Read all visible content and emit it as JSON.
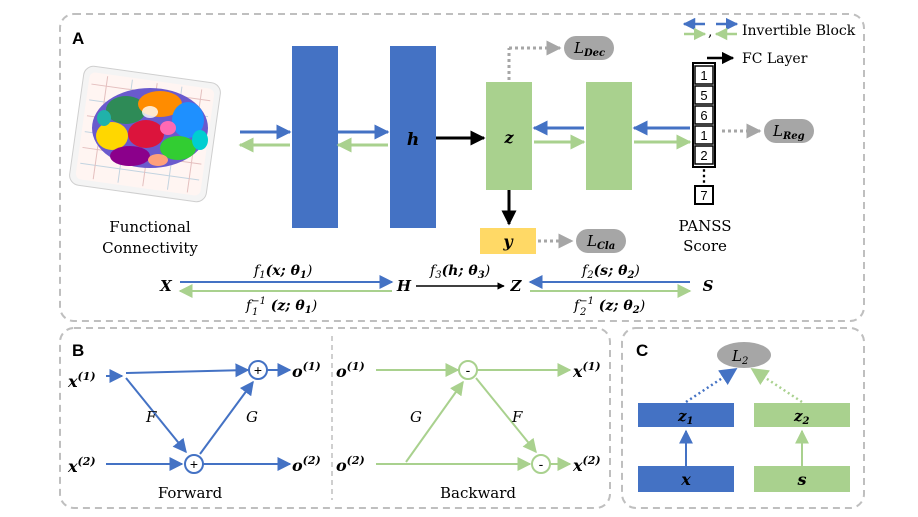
{
  "panels": {
    "a": "A",
    "b": "B",
    "c": "C"
  },
  "legend": {
    "comma": ",",
    "invertible": "Invertible Block",
    "fc": "FC Layer"
  },
  "panel_a": {
    "fc_label_1": "Functional",
    "fc_label_2": "Connectivity",
    "h": "h",
    "z": "z",
    "y": "y",
    "l_dec": "L",
    "l_dec_sub": "Dec",
    "l_cla": "L",
    "l_cla_sub": "Cla",
    "l_reg": "L",
    "l_reg_sub": "Reg",
    "panss_1": "PANSS",
    "panss_2": "Score",
    "scores": [
      "1",
      "5",
      "6",
      "1",
      "2",
      "7"
    ],
    "dots": "⋮",
    "eq": {
      "X": "X",
      "H": "H",
      "Z": "Z",
      "S": "S",
      "f1": "f",
      "f1_sub": "1",
      "f1_args": "(x; θ",
      "f1_args_sub": "1",
      "f1_close": ")",
      "f1_inv": "f",
      "f1_inv_sub": "1",
      "f1_inv_sup": "−1",
      "f1_inv_args": " (z; θ",
      "f1_inv_args_sub": "1",
      "f1_inv_close": ")",
      "f3": "f",
      "f3_sub": "3",
      "f3_args": "(h; θ",
      "f3_args_sub": "3",
      "f3_close": ")",
      "f2": "f",
      "f2_sub": "2",
      "f2_args": "(s; θ",
      "f2_args_sub": "2",
      "f2_close": ")",
      "f2_inv": "f",
      "f2_inv_sub": "2",
      "f2_inv_sup": "−1",
      "f2_inv_args": " (z; θ",
      "f2_inv_args_sub": "2",
      "f2_inv_close": ")"
    }
  },
  "panel_b": {
    "x": "x",
    "o": "o",
    "sup1": "(1)",
    "sup2": "(2)",
    "F": "F",
    "G": "G",
    "plus": "+",
    "minus": "-",
    "forward": "Forward",
    "backward": "Backward"
  },
  "panel_c": {
    "L": "L",
    "L_sub": "2",
    "z": "z",
    "z1_sub": "1",
    "z2_sub": "2",
    "x": "x",
    "s": "s"
  },
  "colors": {
    "blue": "#4472c4",
    "green": "#a9d18e",
    "yellow": "#ffd966",
    "gray": "#a6a6a6",
    "dashed_border": "#bfbfbf"
  }
}
